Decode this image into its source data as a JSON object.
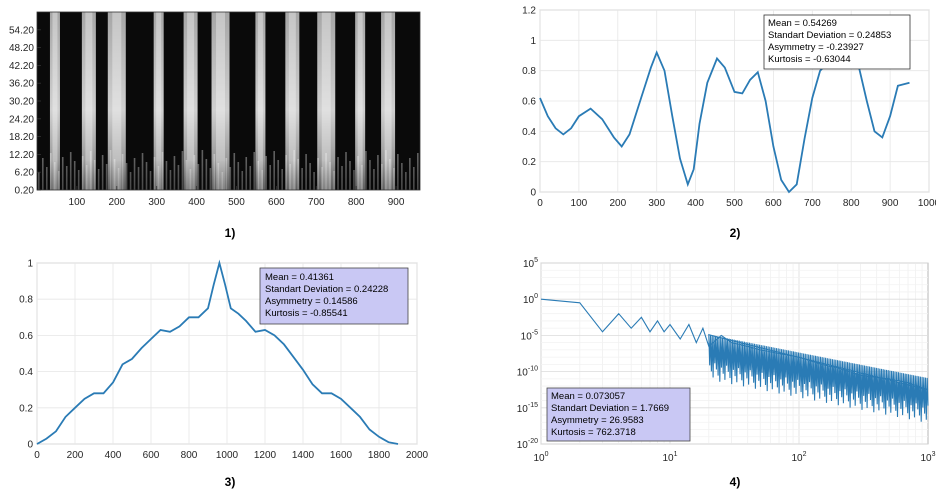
{
  "chart_data": [
    {
      "type": "heatmap",
      "panel_label": "1)",
      "xlim": [
        0,
        960
      ],
      "x_ticks": [
        100,
        200,
        300,
        400,
        500,
        600,
        700,
        800,
        900
      ],
      "y_ticks": [
        "0.20",
        "6.20",
        "12.20",
        "18.20",
        "24.20",
        "30.20",
        "36.20",
        "42.20",
        "48.20",
        "54.20"
      ],
      "ylim": [
        0.2,
        60.2
      ],
      "colormap": "grayscale",
      "bright_columns_x": [
        45,
        130,
        200,
        305,
        385,
        460,
        560,
        640,
        725,
        810,
        880
      ]
    },
    {
      "type": "line",
      "panel_label": "2)",
      "xlim": [
        0,
        1000
      ],
      "ylim": [
        0,
        1.2
      ],
      "x_ticks": [
        0,
        100,
        200,
        300,
        400,
        500,
        600,
        700,
        800,
        900,
        1000
      ],
      "y_ticks": [
        0,
        0.2,
        0.4,
        0.6,
        0.8,
        1,
        1.2
      ],
      "tick_labels_x": [
        "0",
        "100",
        "200",
        "300",
        "400",
        "500",
        "600",
        "700",
        "800",
        "900",
        "1000"
      ],
      "tick_labels_y": [
        "0",
        "0.2",
        "0.4",
        "0.6",
        "0.8",
        "1",
        "1.2"
      ],
      "grid": true,
      "legend_position": "top-right",
      "color": "#2a7bb5",
      "x": [
        0,
        20,
        40,
        60,
        80,
        100,
        130,
        160,
        190,
        210,
        230,
        260,
        285,
        300,
        320,
        340,
        360,
        380,
        395,
        410,
        430,
        455,
        475,
        500,
        520,
        540,
        560,
        580,
        600,
        620,
        640,
        660,
        680,
        700,
        720,
        740,
        760,
        780,
        800,
        820,
        840,
        860,
        880,
        900,
        920,
        950
      ],
      "values": [
        0.62,
        0.5,
        0.42,
        0.38,
        0.42,
        0.5,
        0.55,
        0.48,
        0.36,
        0.3,
        0.38,
        0.62,
        0.82,
        0.92,
        0.8,
        0.5,
        0.22,
        0.05,
        0.15,
        0.45,
        0.72,
        0.88,
        0.82,
        0.66,
        0.65,
        0.74,
        0.79,
        0.6,
        0.3,
        0.08,
        0.0,
        0.05,
        0.35,
        0.62,
        0.8,
        0.85,
        0.82,
        0.82,
        0.84,
        0.82,
        0.6,
        0.4,
        0.36,
        0.5,
        0.7,
        0.72
      ],
      "stats": [
        "Mean = 0.54269",
        "Standart Deviation = 0.24853",
        "Asymmetry = -0.23927",
        "Kurtosis = -0.63044"
      ]
    },
    {
      "type": "line",
      "panel_label": "3)",
      "xlim": [
        0,
        2000
      ],
      "ylim": [
        0,
        1
      ],
      "x_ticks": [
        0,
        200,
        400,
        600,
        800,
        1000,
        1200,
        1400,
        1600,
        1800,
        2000
      ],
      "y_ticks": [
        0,
        0.2,
        0.4,
        0.6,
        0.8,
        1
      ],
      "tick_labels_x": [
        "0",
        "200",
        "400",
        "600",
        "800",
        "1000",
        "1200",
        "1400",
        "1600",
        "1800",
        "2000"
      ],
      "tick_labels_y": [
        "0",
        "0.2",
        "0.4",
        "0.6",
        "0.8",
        "1"
      ],
      "grid": true,
      "legend_position": "top-right",
      "color": "#2a7bb5",
      "x": [
        0,
        50,
        100,
        150,
        200,
        250,
        300,
        350,
        400,
        450,
        500,
        550,
        600,
        650,
        700,
        750,
        800,
        850,
        900,
        930,
        960,
        990,
        1020,
        1060,
        1100,
        1150,
        1200,
        1250,
        1300,
        1350,
        1400,
        1450,
        1500,
        1550,
        1600,
        1650,
        1700,
        1750,
        1800,
        1850,
        1900
      ],
      "values": [
        0.0,
        0.03,
        0.07,
        0.15,
        0.2,
        0.25,
        0.28,
        0.28,
        0.34,
        0.44,
        0.47,
        0.53,
        0.58,
        0.63,
        0.62,
        0.65,
        0.7,
        0.7,
        0.75,
        0.88,
        1.0,
        0.88,
        0.75,
        0.72,
        0.68,
        0.62,
        0.63,
        0.6,
        0.55,
        0.48,
        0.41,
        0.33,
        0.28,
        0.28,
        0.25,
        0.2,
        0.15,
        0.08,
        0.04,
        0.01,
        0.0
      ],
      "stats": [
        "Mean = 0.41361",
        "Standart Deviation = 0.24228",
        "Asymmetry = 0.14586",
        "Kurtosis = -0.85541"
      ]
    },
    {
      "type": "line",
      "panel_label": "4)",
      "x_scale": "log",
      "y_scale": "log",
      "xlim": [
        1,
        1000
      ],
      "ylim": [
        1e-20,
        100000.0
      ],
      "x_ticks": [
        1,
        10,
        100,
        1000
      ],
      "y_ticks": [
        1e-20,
        1e-15,
        1e-10,
        1e-05,
        1,
        100000.0
      ],
      "tick_labels_x": [
        [
          "10",
          "0"
        ],
        [
          "10",
          "1"
        ],
        [
          "10",
          "2"
        ],
        [
          "10",
          "3"
        ]
      ],
      "tick_labels_y": [
        [
          "10",
          "-20"
        ],
        [
          "10",
          "-15"
        ],
        [
          "10",
          "-10"
        ],
        [
          "10",
          "-5"
        ],
        [
          "10",
          "0"
        ],
        [
          "10",
          "5"
        ]
      ],
      "grid": true,
      "legend_position": "bottom-left",
      "color": "#2a7bb5",
      "x": [
        1,
        2,
        3,
        4,
        5,
        6,
        7,
        8,
        9,
        10,
        12,
        14,
        16,
        18,
        20,
        25,
        30,
        40,
        50,
        70,
        100,
        150,
        200,
        300,
        500,
        700,
        1000
      ],
      "log10_values": [
        0,
        -0.5,
        -4.5,
        -2.0,
        -4.0,
        -2.5,
        -4.5,
        -3.0,
        -4.5,
        -3.5,
        -5.5,
        -3.5,
        -6.0,
        -4.0,
        -6.5,
        -5.0,
        -6.0,
        -6.5,
        -7.0,
        -7.5,
        -8.0,
        -9.0,
        -9.5,
        -10.5,
        -11.0,
        -11.5,
        -12.5
      ],
      "stats": [
        "Mean = 0.073057",
        "Standart Deviation = 1.7669",
        "Asymmetry = 26.9583",
        "Kurtosis = 762.3718"
      ]
    }
  ]
}
